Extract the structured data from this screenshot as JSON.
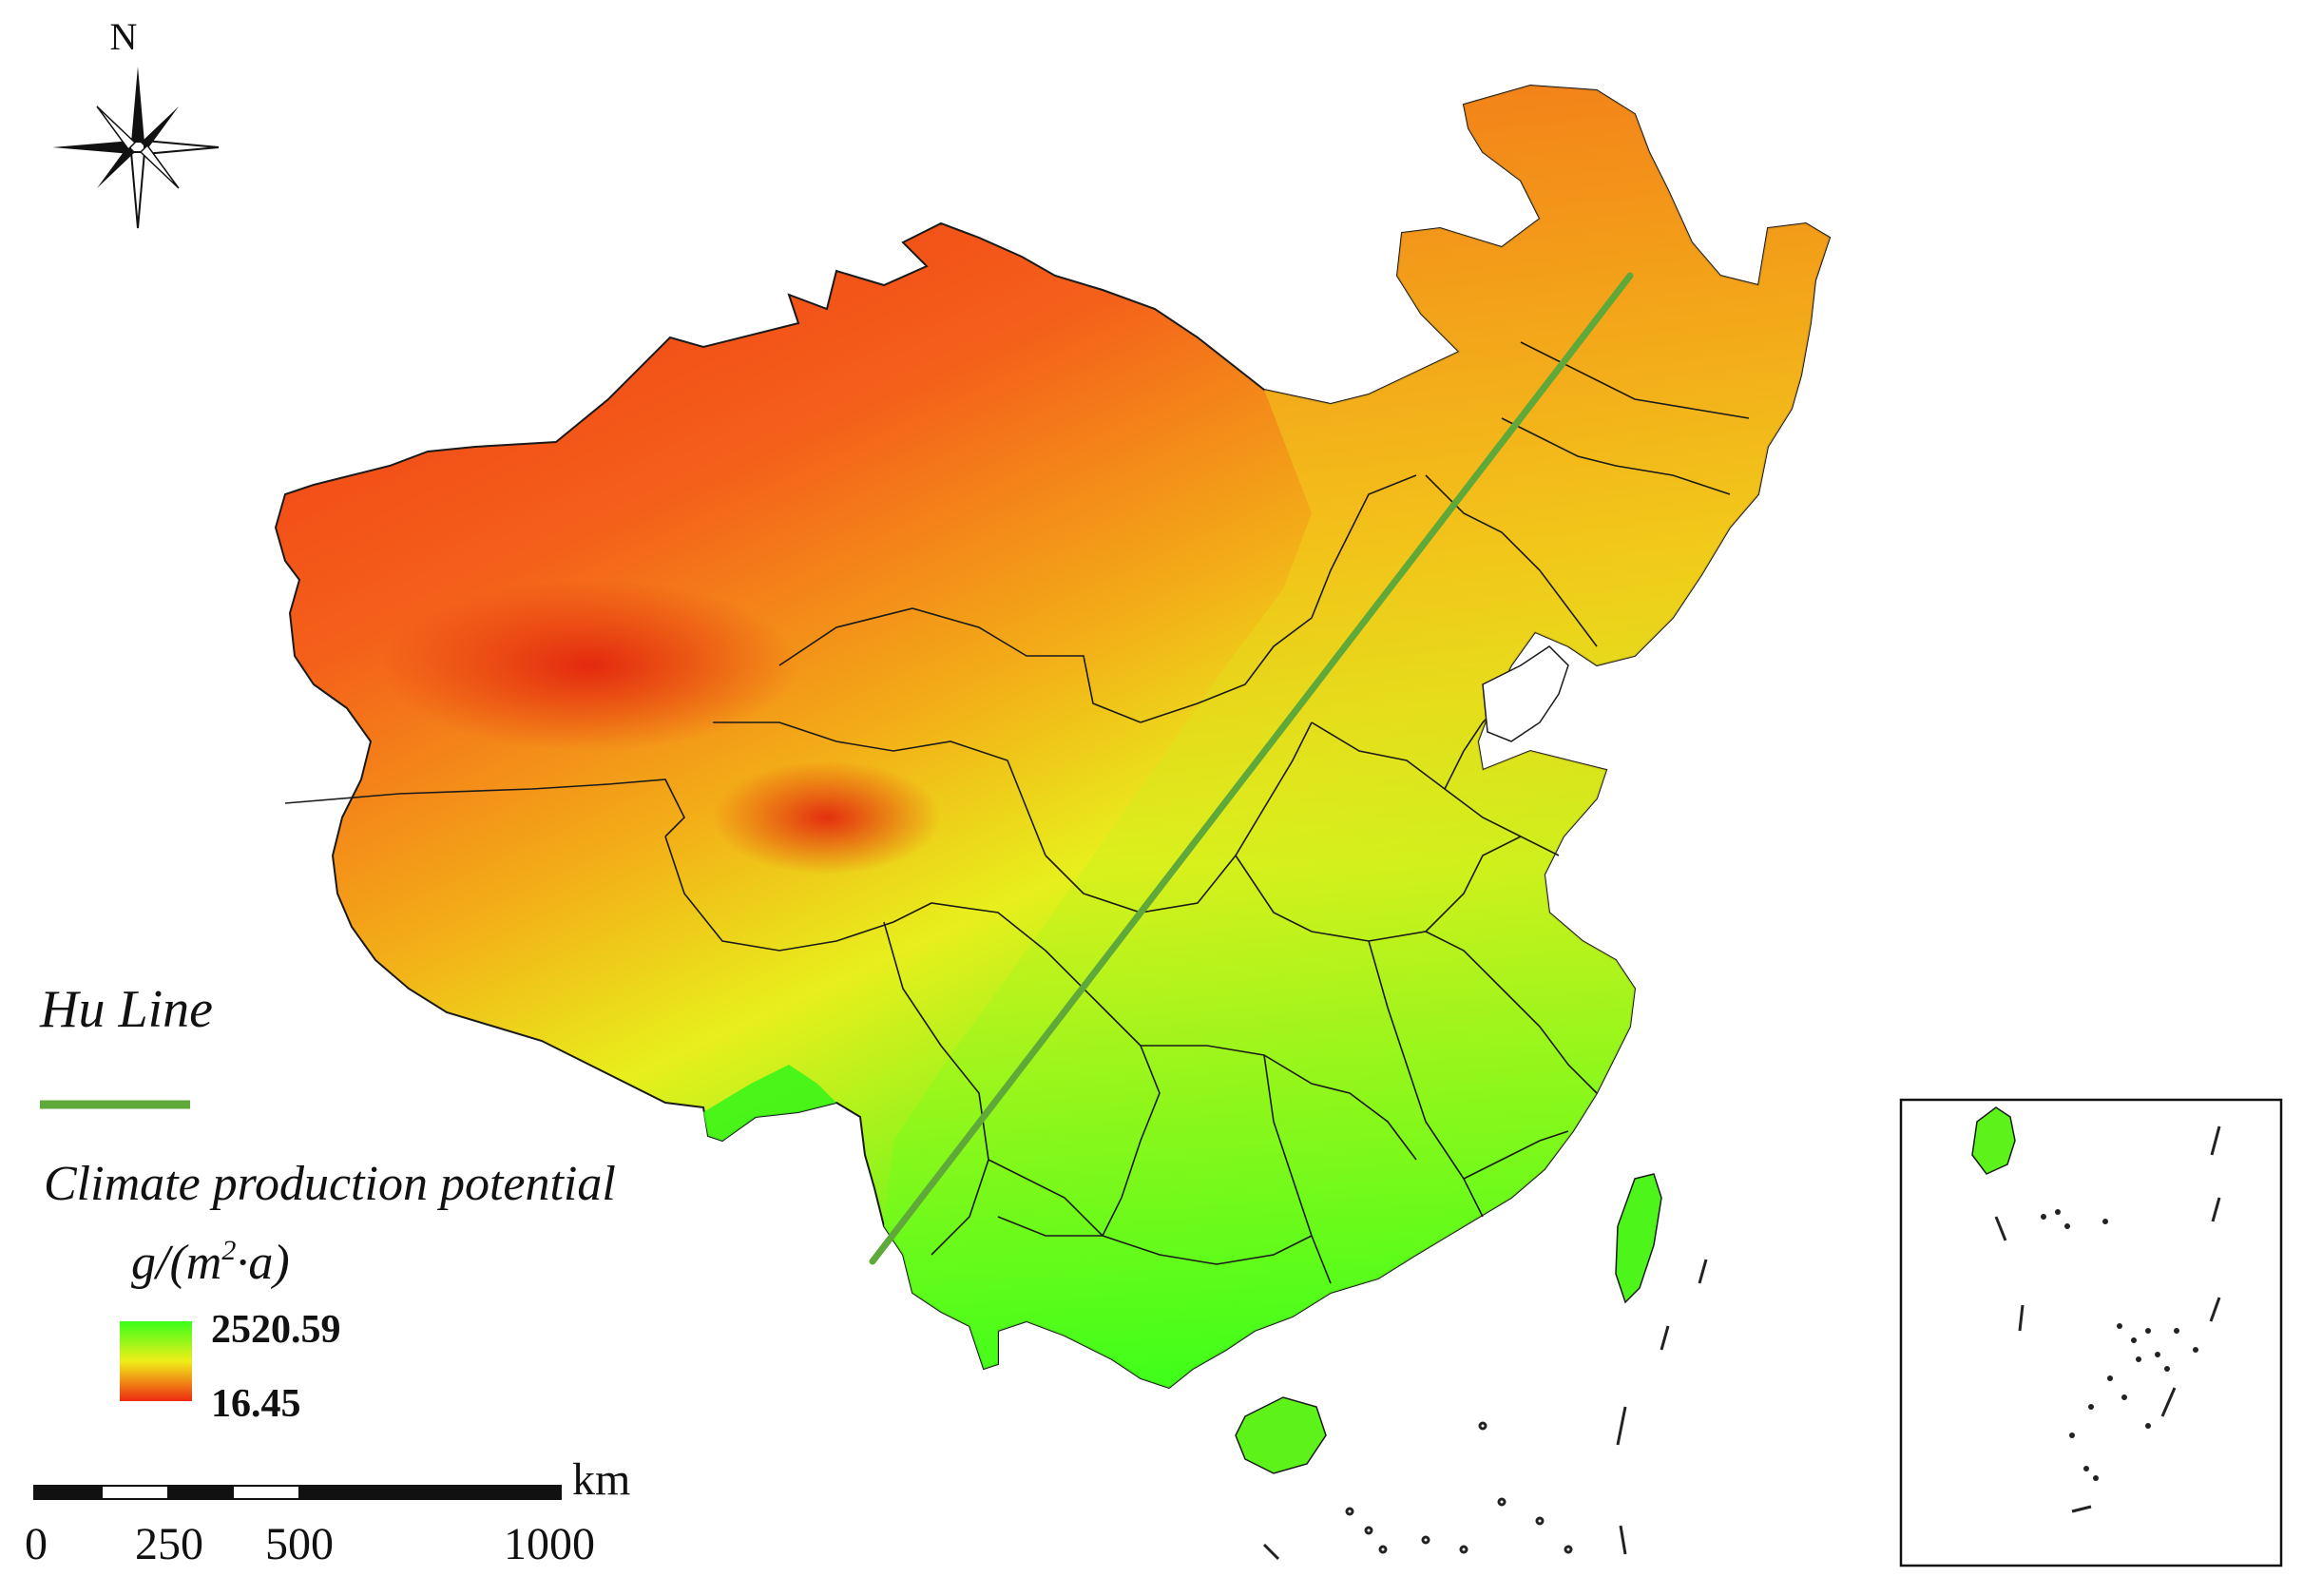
{
  "map": {
    "north_label": "N",
    "hu_line_label": "Hu Line",
    "legend_title": "Climate production potential",
    "legend_units_prefix": "g/(m",
    "legend_units_sup": "2",
    "legend_units_suffix": "·a)",
    "legend_max": "2520.59",
    "legend_min": "16.45",
    "scale_unit": "km",
    "scale_ticks": [
      "0",
      "250",
      "500",
      "1000"
    ],
    "colors": {
      "hu_line": "#5fa83a",
      "high": "#39ff1a",
      "mid": "#f0ee18",
      "low": "#ee2a12",
      "boundary": "#1a1a1a"
    }
  }
}
